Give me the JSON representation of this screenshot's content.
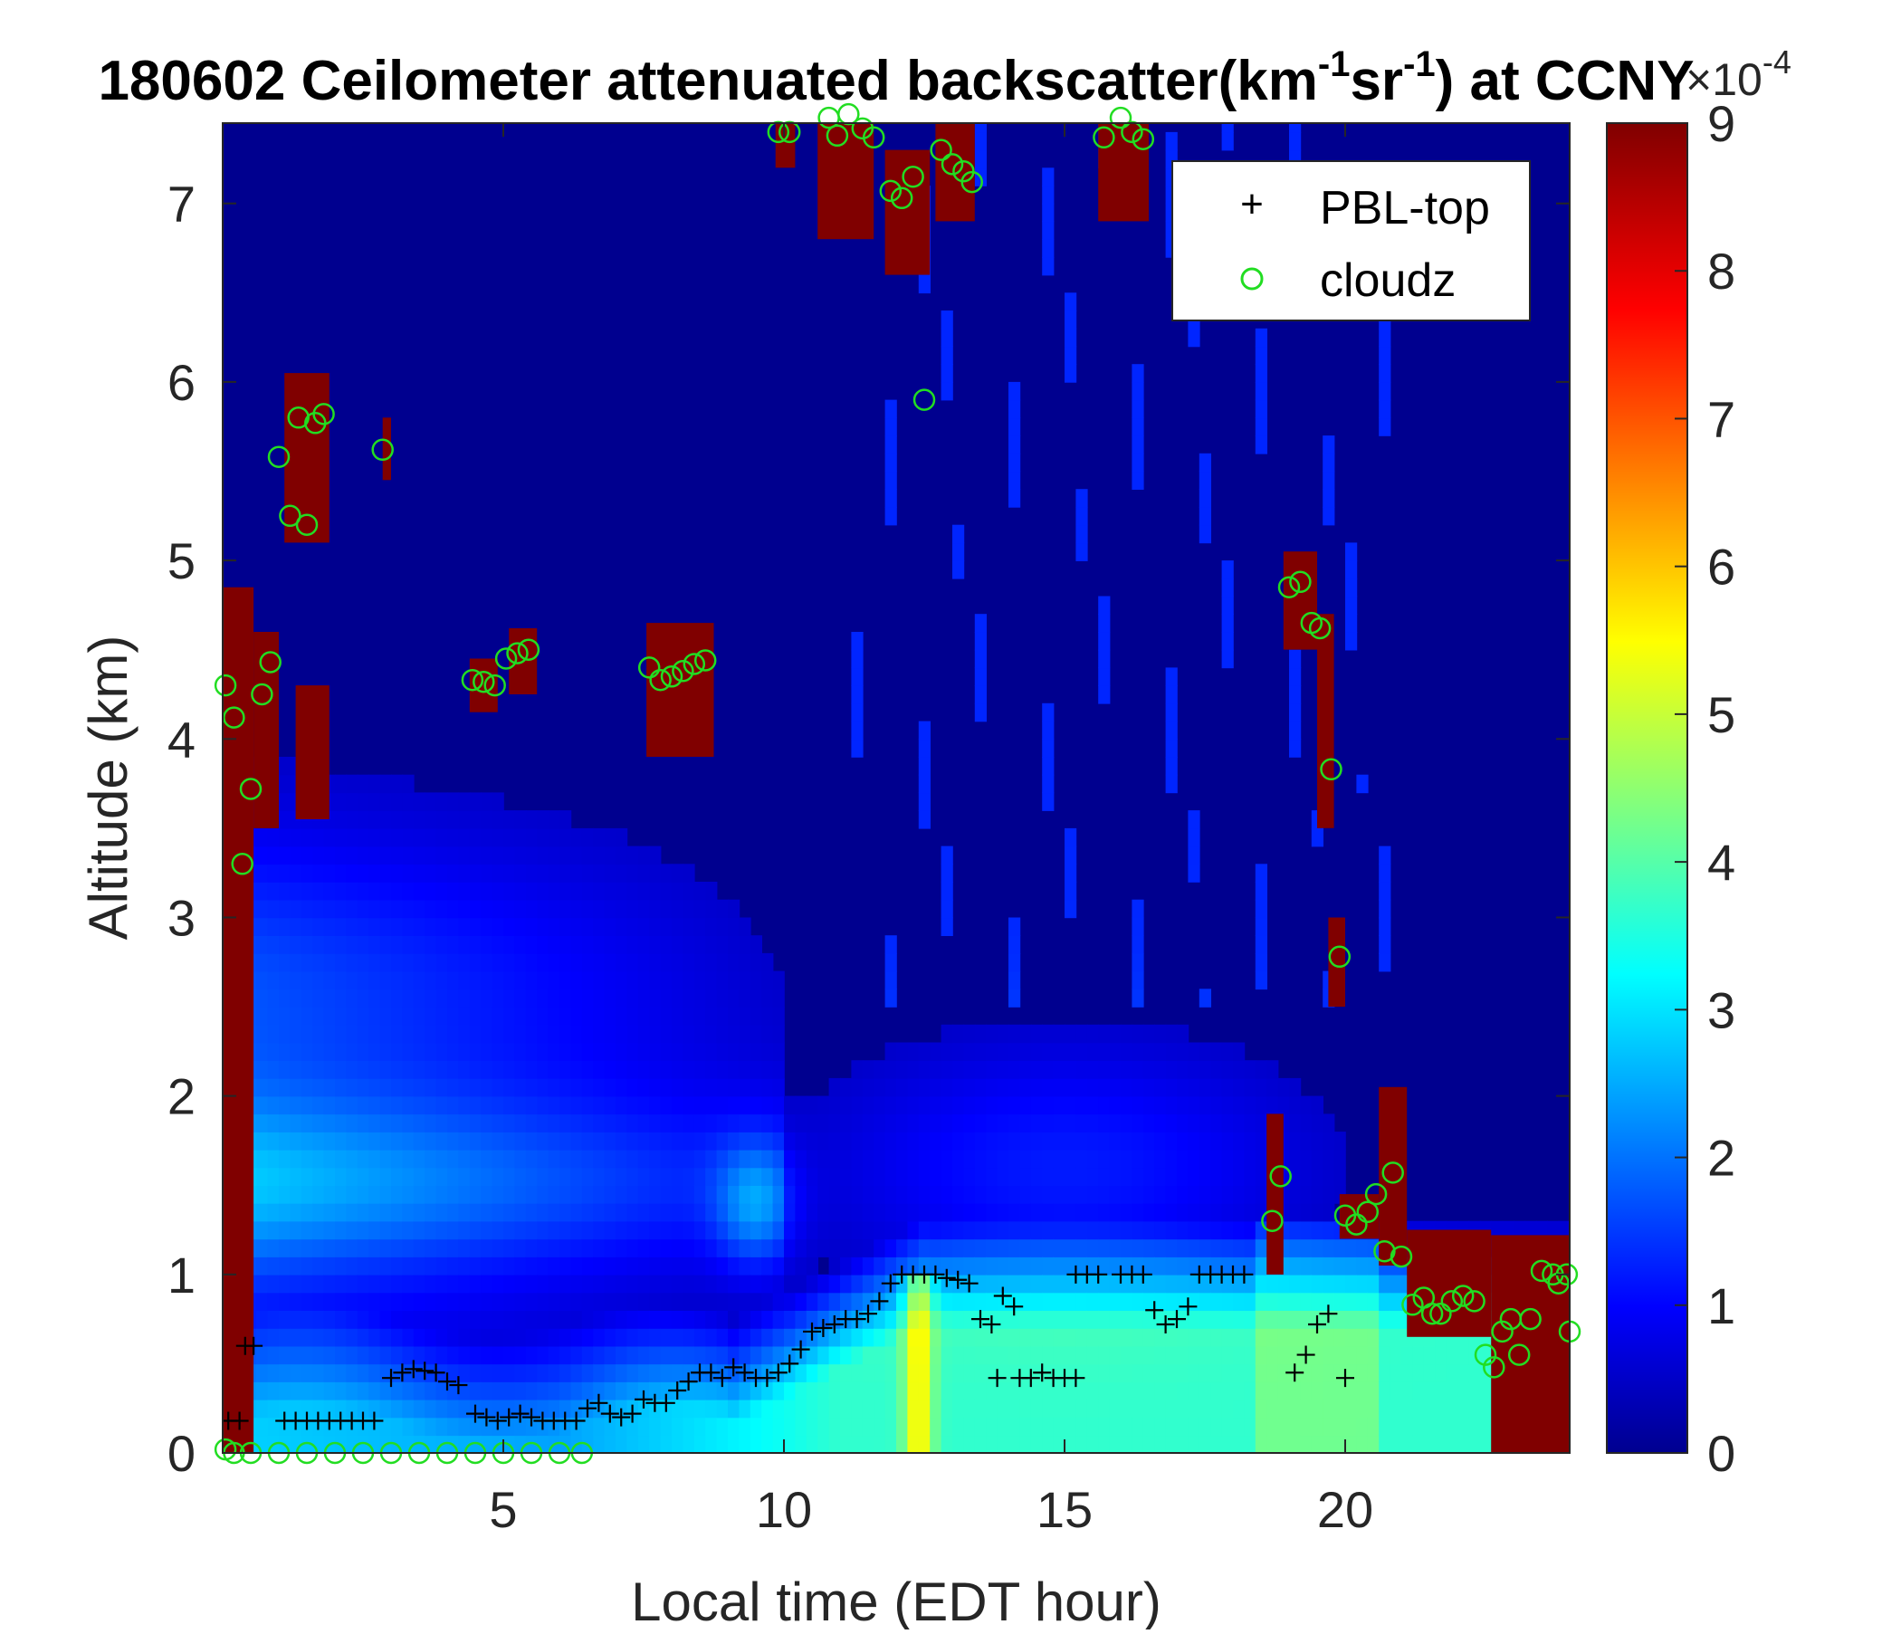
{
  "chart_data": {
    "type": "heatmap",
    "title_prefix": "180602 Ceilometer attenuated backscatter(km",
    "title_sup1": "-1",
    "title_mid": "sr",
    "title_sup2": "-1",
    "title_suffix": ") at CCNY",
    "xlabel": "Local time (EDT hour)",
    "ylabel": "Altitude (km)",
    "xlim": [
      0,
      24
    ],
    "ylim": [
      0,
      7.45
    ],
    "xticks": [
      5,
      10,
      15,
      20
    ],
    "yticks": [
      0,
      1,
      2,
      3,
      4,
      5,
      6,
      7
    ],
    "colormap": "jet",
    "colorbar": {
      "min": 0,
      "max": 9,
      "ticks": [
        0,
        1,
        2,
        3,
        4,
        5,
        6,
        7,
        8,
        9
      ],
      "multiplier_base": "×10",
      "multiplier_exp": "-4"
    },
    "legend": {
      "position": "top-right",
      "entries": [
        {
          "label": "PBL-top",
          "marker": "+",
          "color": "#000000"
        },
        {
          "label": "cloudz",
          "marker": "o",
          "color": "#22dd22"
        }
      ]
    },
    "series": [
      {
        "name": "PBL-top",
        "points": [
          [
            0.1,
            0.18
          ],
          [
            0.3,
            0.18
          ],
          [
            0.4,
            0.6
          ],
          [
            0.55,
            0.6
          ],
          [
            1.1,
            0.18
          ],
          [
            1.3,
            0.18
          ],
          [
            1.5,
            0.18
          ],
          [
            1.7,
            0.18
          ],
          [
            1.9,
            0.18
          ],
          [
            2.1,
            0.18
          ],
          [
            2.3,
            0.18
          ],
          [
            2.5,
            0.18
          ],
          [
            2.7,
            0.18
          ],
          [
            3.0,
            0.42
          ],
          [
            3.2,
            0.45
          ],
          [
            3.4,
            0.47
          ],
          [
            3.6,
            0.46
          ],
          [
            3.8,
            0.45
          ],
          [
            4.0,
            0.4
          ],
          [
            4.2,
            0.38
          ],
          [
            4.5,
            0.22
          ],
          [
            4.7,
            0.2
          ],
          [
            4.9,
            0.18
          ],
          [
            5.1,
            0.2
          ],
          [
            5.3,
            0.22
          ],
          [
            5.5,
            0.2
          ],
          [
            5.7,
            0.18
          ],
          [
            5.9,
            0.18
          ],
          [
            6.1,
            0.18
          ],
          [
            6.3,
            0.18
          ],
          [
            6.5,
            0.25
          ],
          [
            6.7,
            0.28
          ],
          [
            6.9,
            0.22
          ],
          [
            7.1,
            0.2
          ],
          [
            7.3,
            0.22
          ],
          [
            7.5,
            0.3
          ],
          [
            7.7,
            0.28
          ],
          [
            7.9,
            0.28
          ],
          [
            8.1,
            0.35
          ],
          [
            8.3,
            0.4
          ],
          [
            8.5,
            0.45
          ],
          [
            8.7,
            0.45
          ],
          [
            8.9,
            0.42
          ],
          [
            9.1,
            0.48
          ],
          [
            9.3,
            0.45
          ],
          [
            9.5,
            0.42
          ],
          [
            9.7,
            0.42
          ],
          [
            9.9,
            0.45
          ],
          [
            10.1,
            0.5
          ],
          [
            10.3,
            0.58
          ],
          [
            10.5,
            0.68
          ],
          [
            10.7,
            0.7
          ],
          [
            10.9,
            0.72
          ],
          [
            11.1,
            0.75
          ],
          [
            11.3,
            0.75
          ],
          [
            11.5,
            0.78
          ],
          [
            11.7,
            0.85
          ],
          [
            11.9,
            0.95
          ],
          [
            12.1,
            1.0
          ],
          [
            12.3,
            1.0
          ],
          [
            12.5,
            1.0
          ],
          [
            12.7,
            1.0
          ],
          [
            12.9,
            0.98
          ],
          [
            13.1,
            0.97
          ],
          [
            13.3,
            0.95
          ],
          [
            13.5,
            0.75
          ],
          [
            13.7,
            0.72
          ],
          [
            13.9,
            0.88
          ],
          [
            14.1,
            0.82
          ],
          [
            13.8,
            0.42
          ],
          [
            14.2,
            0.42
          ],
          [
            14.4,
            0.42
          ],
          [
            14.6,
            0.45
          ],
          [
            14.8,
            0.42
          ],
          [
            15.0,
            0.42
          ],
          [
            15.2,
            0.42
          ],
          [
            15.2,
            1.0
          ],
          [
            15.4,
            1.0
          ],
          [
            15.6,
            1.0
          ],
          [
            16.0,
            1.0
          ],
          [
            16.2,
            1.0
          ],
          [
            16.4,
            1.0
          ],
          [
            16.6,
            0.8
          ],
          [
            16.8,
            0.72
          ],
          [
            17.0,
            0.75
          ],
          [
            17.2,
            0.82
          ],
          [
            17.4,
            1.0
          ],
          [
            17.6,
            1.0
          ],
          [
            17.8,
            1.0
          ],
          [
            18.0,
            1.0
          ],
          [
            18.2,
            1.0
          ],
          [
            19.1,
            0.45
          ],
          [
            19.3,
            0.55
          ],
          [
            19.5,
            0.72
          ],
          [
            19.7,
            0.78
          ],
          [
            20.0,
            0.42
          ]
        ]
      },
      {
        "name": "cloudz",
        "points": [
          [
            0.05,
            4.3
          ],
          [
            0.2,
            4.12
          ],
          [
            0.35,
            3.3
          ],
          [
            0.5,
            3.72
          ],
          [
            0.7,
            4.25
          ],
          [
            0.85,
            4.43
          ],
          [
            1.0,
            5.58
          ],
          [
            1.2,
            5.25
          ],
          [
            1.35,
            5.8
          ],
          [
            1.5,
            5.2
          ],
          [
            1.65,
            5.77
          ],
          [
            1.8,
            5.82
          ],
          [
            2.85,
            5.62
          ],
          [
            4.45,
            4.33
          ],
          [
            4.65,
            4.32
          ],
          [
            4.85,
            4.3
          ],
          [
            5.05,
            4.45
          ],
          [
            5.25,
            4.48
          ],
          [
            5.45,
            4.5
          ],
          [
            7.6,
            4.4
          ],
          [
            7.8,
            4.33
          ],
          [
            8.0,
            4.35
          ],
          [
            8.2,
            4.38
          ],
          [
            8.4,
            4.42
          ],
          [
            8.6,
            4.44
          ],
          [
            9.9,
            7.4
          ],
          [
            10.1,
            7.4
          ],
          [
            10.8,
            7.48
          ],
          [
            10.95,
            7.38
          ],
          [
            11.15,
            7.5
          ],
          [
            11.4,
            7.42
          ],
          [
            11.6,
            7.37
          ],
          [
            11.9,
            7.07
          ],
          [
            12.1,
            7.03
          ],
          [
            12.3,
            7.15
          ],
          [
            12.5,
            5.9
          ],
          [
            12.8,
            7.3
          ],
          [
            13.0,
            7.22
          ],
          [
            13.2,
            7.18
          ],
          [
            13.35,
            7.12
          ],
          [
            15.7,
            7.37
          ],
          [
            16.0,
            7.48
          ],
          [
            16.2,
            7.4
          ],
          [
            16.4,
            7.36
          ],
          [
            18.7,
            1.3
          ],
          [
            18.85,
            1.55
          ],
          [
            19.0,
            4.85
          ],
          [
            19.2,
            4.88
          ],
          [
            19.4,
            4.65
          ],
          [
            19.55,
            4.62
          ],
          [
            19.75,
            3.83
          ],
          [
            19.9,
            2.78
          ],
          [
            20.0,
            1.33
          ],
          [
            20.2,
            1.28
          ],
          [
            20.4,
            1.35
          ],
          [
            20.55,
            1.45
          ],
          [
            20.7,
            1.13
          ],
          [
            20.85,
            1.57
          ],
          [
            21.0,
            1.1
          ],
          [
            21.2,
            0.83
          ],
          [
            21.4,
            0.87
          ],
          [
            21.55,
            0.78
          ],
          [
            21.7,
            0.78
          ],
          [
            21.9,
            0.85
          ],
          [
            22.1,
            0.88
          ],
          [
            22.3,
            0.85
          ],
          [
            22.5,
            0.55
          ],
          [
            22.65,
            0.48
          ],
          [
            22.8,
            0.68
          ],
          [
            22.95,
            0.75
          ],
          [
            23.1,
            0.55
          ],
          [
            23.3,
            0.75
          ],
          [
            23.5,
            1.02
          ],
          [
            23.7,
            1.0
          ],
          [
            23.8,
            0.95
          ],
          [
            23.95,
            1.0
          ],
          [
            24.0,
            0.68
          ],
          [
            0.05,
            0.02
          ],
          [
            0.2,
            0.0
          ],
          [
            0.5,
            0.0
          ],
          [
            1.0,
            0.0
          ],
          [
            1.5,
            0.0
          ],
          [
            2.0,
            0.0
          ],
          [
            2.5,
            0.0
          ],
          [
            3.0,
            0.0
          ],
          [
            3.5,
            0.0
          ],
          [
            4.0,
            0.0
          ],
          [
            4.5,
            0.0
          ],
          [
            5.0,
            0.0
          ],
          [
            5.5,
            0.0
          ],
          [
            6.0,
            0.0
          ],
          [
            6.4,
            0.0
          ]
        ]
      }
    ]
  }
}
